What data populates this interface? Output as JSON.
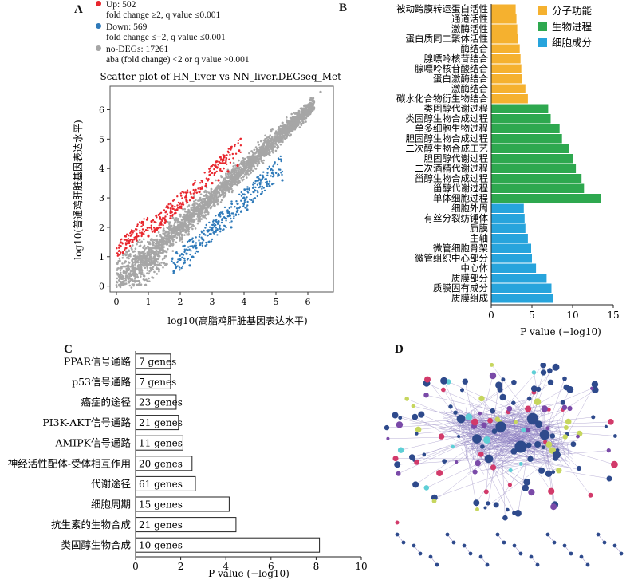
{
  "panel_labels": {
    "a": "A",
    "b": "B",
    "c": "C",
    "d": "D"
  },
  "panel_a": {
    "legend": {
      "up_label": "Up: 502",
      "up_condition": "fold change ≥2, q value ≤0.001",
      "down_label": "Down: 569",
      "down_condition": "fold change ≤−2, q value ≤0.001",
      "none_label": "no-DEGs: 17261",
      "none_condition": "aba (fold change) <2 or q value >0.001",
      "up_color": "#e8262d",
      "down_color": "#2f7ab9",
      "none_color": "#a6a6a6"
    }
  },
  "panel_d": {
    "description_color_nodes": "#2e4a8c"
  },
  "chart_data": [
    {
      "type": "scatter",
      "title": "Scatter plot of HN_liver-vs-NN_liver.DEGseq_Method",
      "xlabel": "log10(高脂鸡肝脏基因表达水平)",
      "ylabel": "log10(普通鸡肝脏基因表达水平)",
      "xlim": [
        -0.2,
        6.8
      ],
      "ylim": [
        -0.2,
        6.8
      ],
      "xticks": [
        0,
        1,
        2,
        3,
        4,
        5,
        6
      ],
      "yticks": [
        0,
        1,
        2,
        3,
        4,
        5,
        6
      ],
      "series": [
        {
          "name": "Up: 502",
          "color": "#e8262d",
          "points": [
            [
              0.8,
              1.8
            ],
            [
              1.0,
              1.7
            ],
            [
              1.2,
              1.9
            ],
            [
              1.4,
              2.1
            ],
            [
              1.5,
              2.3
            ],
            [
              1.7,
              2.5
            ],
            [
              1.9,
              2.6
            ],
            [
              2.0,
              2.7
            ],
            [
              2.2,
              2.9
            ],
            [
              2.4,
              3.0
            ],
            [
              2.6,
              3.2
            ],
            [
              2.8,
              3.4
            ],
            [
              3.0,
              3.5
            ],
            [
              3.2,
              3.6
            ],
            [
              3.5,
              3.9
            ],
            [
              3.8,
              4.1
            ],
            [
              0.5,
              1.5
            ],
            [
              0.3,
              1.3
            ],
            [
              1.1,
              2.2
            ],
            [
              1.6,
              2.7
            ]
          ]
        },
        {
          "name": "Down: 569",
          "color": "#2f7ab9",
          "points": [
            [
              1.8,
              0.5
            ],
            [
              2.0,
              0.9
            ],
            [
              2.2,
              1.1
            ],
            [
              2.5,
              1.3
            ],
            [
              2.7,
              1.6
            ],
            [
              3.0,
              1.9
            ],
            [
              3.2,
              2.2
            ],
            [
              3.5,
              2.5
            ],
            [
              3.8,
              2.8
            ],
            [
              4.0,
              3.0
            ],
            [
              4.3,
              3.2
            ],
            [
              4.5,
              3.5
            ],
            [
              4.8,
              3.4
            ],
            [
              5.2,
              3.6
            ],
            [
              2.3,
              0.7
            ],
            [
              2.9,
              1.5
            ],
            [
              3.6,
              2.0
            ],
            [
              4.1,
              2.6
            ]
          ]
        },
        {
          "name": "no-DEGs: 17261",
          "color": "#a6a6a6",
          "points": [
            [
              0.2,
              0.3
            ],
            [
              0.5,
              0.6
            ],
            [
              0.8,
              0.9
            ],
            [
              1.0,
              1.1
            ],
            [
              1.3,
              1.3
            ],
            [
              1.6,
              1.7
            ],
            [
              2.0,
              2.0
            ],
            [
              2.3,
              2.4
            ],
            [
              2.6,
              2.6
            ],
            [
              3.0,
              3.0
            ],
            [
              3.4,
              3.3
            ],
            [
              3.8,
              3.8
            ],
            [
              4.2,
              4.1
            ],
            [
              4.6,
              4.6
            ],
            [
              5.0,
              5.0
            ],
            [
              5.4,
              5.3
            ],
            [
              5.8,
              5.9
            ],
            [
              6.4,
              6.6
            ]
          ]
        }
      ]
    },
    {
      "type": "bar",
      "orientation": "horizontal",
      "xlabel": "P value (−log10)",
      "xlim": [
        0,
        15
      ],
      "xticks": [
        0,
        5,
        10,
        15
      ],
      "categories": [
        "被动跨膜转运蛋白活性",
        "通道活性",
        "激酶活性",
        "蛋白质同二聚体活性",
        "酶结合",
        "腺嘌呤核苷结合",
        "腺嘌呤核苷酸结合",
        "蛋白激酶结合",
        "激酶结合",
        "碳水化合物衍生物结合",
        "类固醇代谢过程",
        "类固醇生物合成过程",
        "单多细胞生物过程",
        "胆固醇生物合成过程",
        "二次醇生物合成工艺",
        "胆固醇代谢过程",
        "二次酒精代谢过程",
        "甾醇生物合成过程",
        "甾醇代谢过程",
        "单体细胞过程",
        "细胞外周",
        "有丝分裂纺锤体",
        "质膜",
        "主轴",
        "微管细胞骨架",
        "微管组织中心部分",
        "中心体",
        "质膜部分",
        "质膜固有成分",
        "质膜组成"
      ],
      "values": [
        3.0,
        3.1,
        3.2,
        3.3,
        3.5,
        3.6,
        3.7,
        3.8,
        4.2,
        4.5,
        7.0,
        7.3,
        8.4,
        8.7,
        9.6,
        10.0,
        10.4,
        11.1,
        11.4,
        13.5,
        4.0,
        4.1,
        4.2,
        4.5,
        4.9,
        5.0,
        5.5,
        6.8,
        7.4,
        7.6
      ],
      "groups": [
        0,
        0,
        0,
        0,
        0,
        0,
        0,
        0,
        0,
        0,
        1,
        1,
        1,
        1,
        1,
        1,
        1,
        1,
        1,
        1,
        2,
        2,
        2,
        2,
        2,
        2,
        2,
        2,
        2,
        2
      ],
      "legend": [
        {
          "name": "分子功能",
          "color": "#f5b12f"
        },
        {
          "name": "生物进程",
          "color": "#2ea84f"
        },
        {
          "name": "细胞成分",
          "color": "#27a4dc"
        }
      ]
    },
    {
      "type": "bar",
      "orientation": "horizontal",
      "xlabel": "P value (−log10)",
      "xlim": [
        0,
        10
      ],
      "xticks": [
        0,
        2,
        4,
        6,
        8,
        10
      ],
      "categories": [
        "PPAR信号通路",
        "p53信号通路",
        "癌症的途径",
        "PI3K-AKT信号通路",
        "AMIPK信号通路",
        "神经活性配体-受体相互作用",
        "代谢途径",
        "细胞周期",
        "抗生素的生物合成",
        "类固醇生物合成"
      ],
      "values": [
        1.55,
        1.55,
        1.8,
        1.9,
        2.1,
        2.5,
        2.65,
        4.15,
        4.45,
        8.15
      ],
      "bar_labels": [
        "7 genes",
        "7 genes",
        "23 genes",
        "21 genes",
        "11 genes",
        "20 genes",
        "61 genes",
        "15 genes",
        "21 genes",
        "10 genes"
      ]
    }
  ]
}
